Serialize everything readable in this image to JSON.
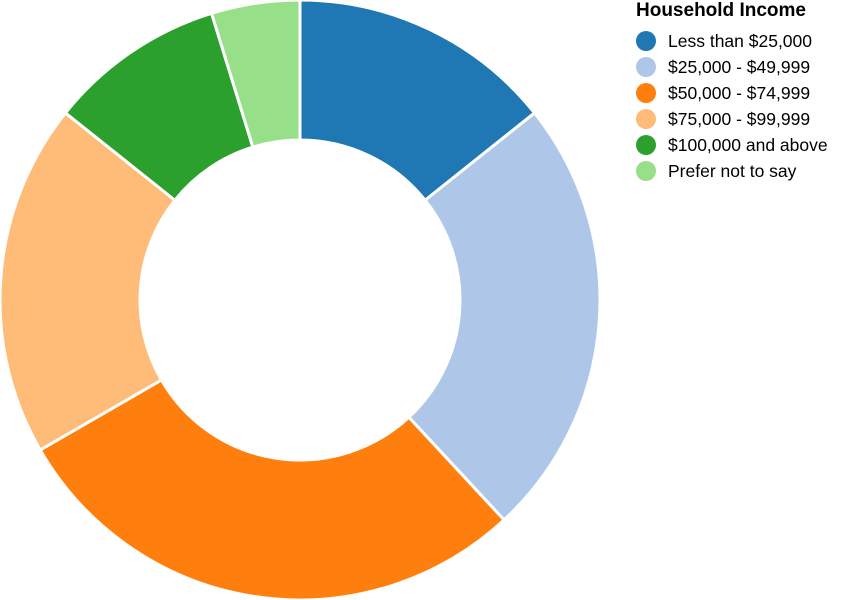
{
  "chart_data": {
    "type": "pie",
    "variant": "donut",
    "title": "",
    "legend": {
      "title": "Household Income",
      "position": "top-right"
    },
    "categories": [
      "Less than $25,000",
      "$25,000 - $49,999",
      "$50,000 - $74,999",
      "$75,000 - $99,999",
      "$100,000 and above",
      "Prefer not to say"
    ],
    "values": [
      15,
      25,
      30,
      20,
      10,
      5
    ],
    "colors": [
      "#1f77b4",
      "#aec7e8",
      "#ff7f0e",
      "#ffbb78",
      "#2ca02c",
      "#98df8a"
    ]
  }
}
